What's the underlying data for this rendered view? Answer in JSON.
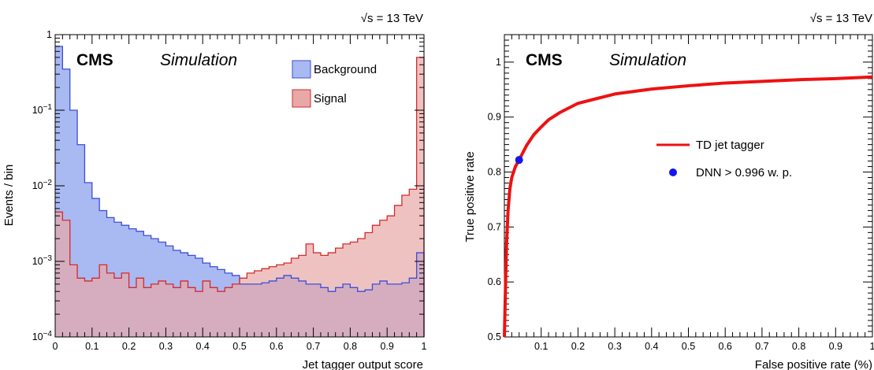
{
  "chart_data": [
    {
      "type": "area",
      "energy_label": "√s = 13 TeV",
      "cms_label": "CMS",
      "sim_label": "Simulation",
      "xlabel": "Jet tagger output score",
      "ylabel": "Events / bin",
      "xlim": [
        0,
        1
      ],
      "ylim": [
        0.0001,
        1
      ],
      "yscale": "log",
      "x_tick_labels": [
        "0",
        "0.1",
        "0.2",
        "0.3",
        "0.4",
        "0.5",
        "0.6",
        "0.7",
        "0.8",
        "0.9",
        "1"
      ],
      "y_tick_labels": [
        {
          "base": "10",
          "exp": "−4"
        },
        {
          "base": "10",
          "exp": "−3"
        },
        {
          "base": "10",
          "exp": "−2"
        },
        {
          "base": "10",
          "exp": "−1"
        },
        {
          "base": "1",
          "exp": ""
        }
      ],
      "legend_position": "top-right",
      "bin_edges": [
        0,
        0.02,
        0.04,
        0.06,
        0.08,
        0.1,
        0.12,
        0.14,
        0.16,
        0.18,
        0.2,
        0.22,
        0.24,
        0.26,
        0.28,
        0.3,
        0.32,
        0.34,
        0.36,
        0.38,
        0.4,
        0.42,
        0.44,
        0.46,
        0.48,
        0.5,
        0.52,
        0.54,
        0.56,
        0.58,
        0.6,
        0.62,
        0.64,
        0.66,
        0.68,
        0.7,
        0.72,
        0.74,
        0.76,
        0.78,
        0.8,
        0.82,
        0.84,
        0.86,
        0.88,
        0.9,
        0.92,
        0.94,
        0.96,
        0.98,
        1.0
      ],
      "series": [
        {
          "name": "Background",
          "fill": "#a9b9f2",
          "line": "#3c4fd6",
          "values": [
            0.7,
            0.35,
            0.1,
            0.035,
            0.011,
            0.0068,
            0.0047,
            0.0038,
            0.0033,
            0.003,
            0.0027,
            0.0025,
            0.0022,
            0.002,
            0.0018,
            0.0016,
            0.0014,
            0.0013,
            0.0012,
            0.0011,
            0.00095,
            0.00085,
            0.00078,
            0.0007,
            0.00065,
            0.0005,
            0.0005,
            0.0005,
            0.00052,
            0.00055,
            0.0006,
            0.00065,
            0.0006,
            0.00055,
            0.0005,
            0.0005,
            0.00045,
            0.0004,
            0.00045,
            0.0005,
            0.00045,
            0.0004,
            0.00042,
            0.0005,
            0.00055,
            0.0005,
            0.0005,
            0.00052,
            0.0006,
            0.0013
          ]
        },
        {
          "name": "Signal",
          "fill": "#e8a8a8",
          "line": "#d62a2a",
          "values": [
            0.0045,
            0.0035,
            0.0009,
            0.0006,
            0.00055,
            0.0006,
            0.0009,
            0.0007,
            0.0006,
            0.0007,
            0.00045,
            0.0006,
            0.00045,
            0.0005,
            0.00055,
            0.0005,
            0.00045,
            0.00055,
            0.00045,
            0.0004,
            0.00055,
            0.00045,
            0.0004,
            0.00045,
            0.0005,
            0.0006,
            0.0007,
            0.00075,
            0.0008,
            0.00085,
            0.0009,
            0.00095,
            0.0011,
            0.0012,
            0.0017,
            0.0013,
            0.0012,
            0.0013,
            0.0015,
            0.0017,
            0.0018,
            0.002,
            0.0024,
            0.003,
            0.0035,
            0.004,
            0.0055,
            0.0075,
            0.009,
            0.5
          ]
        }
      ]
    },
    {
      "type": "line",
      "energy_label": "√s = 13 TeV",
      "cms_label": "CMS",
      "sim_label": "Simulation",
      "xlabel": "False positive rate (%)",
      "ylabel": "True positive rate",
      "xlim": [
        0,
        1
      ],
      "ylim": [
        0.5,
        1.05
      ],
      "x_tick_labels": [
        "0.1",
        "0.2",
        "0.3",
        "0.4",
        "0.5",
        "0.6",
        "0.7",
        "0.8",
        "0.9",
        "1"
      ],
      "y_tick_labels": [
        "0.5",
        "0.6",
        "0.7",
        "0.8",
        "0.9",
        "1"
      ],
      "legend_position": "center-right",
      "series": [
        {
          "name": "TD jet tagger",
          "color": "#ee1111",
          "x": [
            0.0,
            0.002,
            0.004,
            0.006,
            0.008,
            0.01,
            0.015,
            0.02,
            0.025,
            0.03,
            0.04,
            0.05,
            0.06,
            0.08,
            0.1,
            0.12,
            0.15,
            0.2,
            0.3,
            0.4,
            0.5,
            0.6,
            0.7,
            0.8,
            0.9,
            1.0
          ],
          "y": [
            0.5,
            0.56,
            0.62,
            0.67,
            0.7,
            0.73,
            0.77,
            0.79,
            0.8,
            0.81,
            0.822,
            0.835,
            0.848,
            0.868,
            0.882,
            0.895,
            0.908,
            0.925,
            0.942,
            0.951,
            0.957,
            0.962,
            0.965,
            0.968,
            0.97,
            0.973
          ]
        }
      ],
      "points": [
        {
          "name": "DNN > 0.996 w. p.",
          "color": "#1515ee",
          "x": 0.04,
          "y": 0.822
        }
      ]
    }
  ]
}
